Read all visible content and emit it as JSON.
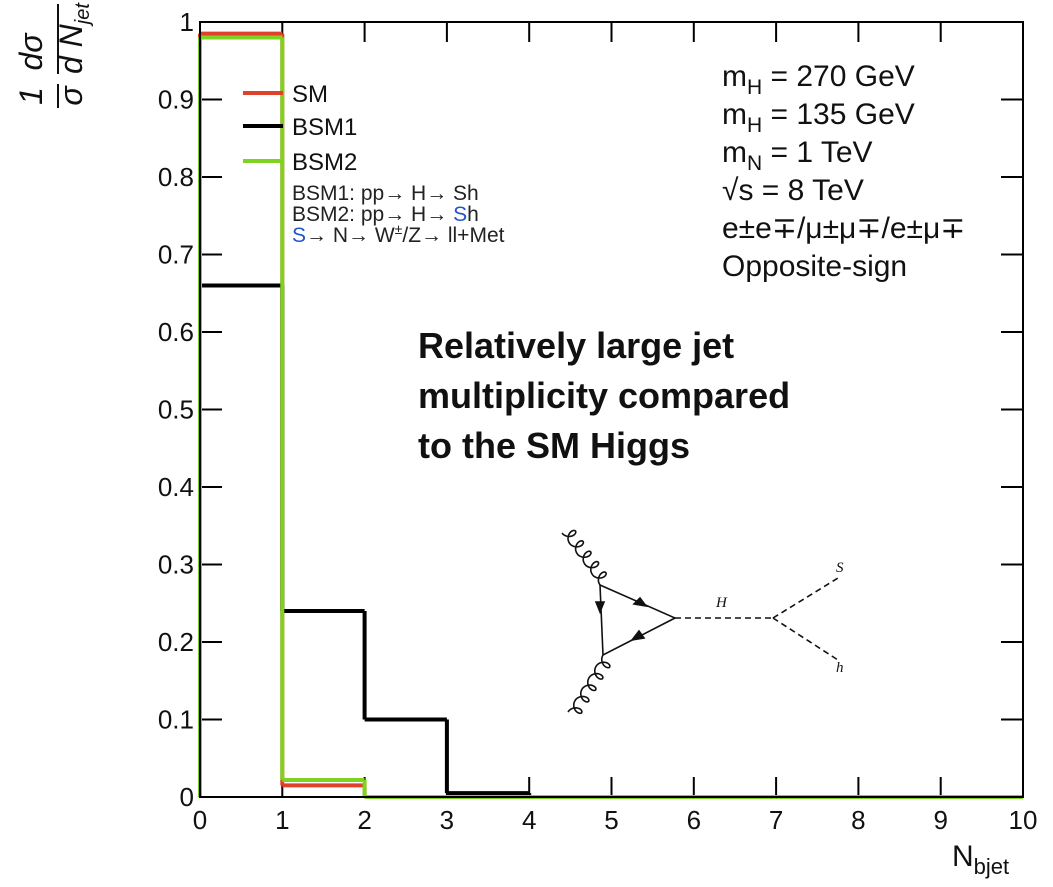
{
  "chart_data": {
    "type": "histogram",
    "ylabel": {
      "frac1_num": "1",
      "frac1_den": "σ",
      "frac2_num": "dσ",
      "frac2_den": "d N",
      "subscript": "jet"
    },
    "xlabel": {
      "text": "N",
      "subscript": "bjet"
    },
    "bins": [
      0,
      1,
      2,
      3,
      4,
      5,
      6,
      7,
      8,
      9,
      10
    ],
    "series": [
      {
        "name": "SM",
        "color": "#e0412b",
        "values": [
          0.985,
          0.015,
          0,
          0,
          0,
          0,
          0,
          0,
          0,
          0
        ]
      },
      {
        "name": "BSM1",
        "color": "#000000",
        "values": [
          0.66,
          0.24,
          0.1,
          0.005,
          0,
          0,
          0,
          0,
          0,
          0
        ]
      },
      {
        "name": "BSM2",
        "color": "#7ed321",
        "values": [
          0.98,
          0.022,
          0,
          0,
          0,
          0,
          0,
          0,
          0,
          0
        ]
      }
    ],
    "xlim": [
      0,
      10
    ],
    "ylim": [
      0,
      1
    ],
    "xticks": [
      0,
      1,
      2,
      3,
      4,
      5,
      6,
      7,
      8,
      9,
      10
    ],
    "yticks": [
      0,
      0.1,
      0.2,
      0.3,
      0.4,
      0.5,
      0.6,
      0.7,
      0.8,
      0.9,
      1
    ],
    "legend_notes": [
      [
        {
          "text": "BSM1: pp→ H→ Sh",
          "color": "#222222"
        }
      ],
      [
        {
          "text": "BSM2: pp→ H→ ",
          "color": "#222222"
        },
        {
          "text": "S",
          "color": "#2255cc"
        },
        {
          "text": "h",
          "color": "#222222"
        }
      ],
      [
        {
          "text": "S",
          "color": "#2255cc"
        },
        {
          "text": "→ N→ W",
          "color": "#222222"
        },
        {
          "text": "±",
          "color": "#222222",
          "sup": true
        },
        {
          "text": "/Z→ ll+Met",
          "color": "#222222"
        }
      ]
    ],
    "info_lines": [
      [
        {
          "text": "m"
        },
        {
          "text": "H",
          "sub": true
        },
        {
          "text": " = 270 GeV"
        }
      ],
      [
        {
          "text": "m"
        },
        {
          "text": "H",
          "sub": true
        },
        {
          "text": " = 135 GeV"
        }
      ],
      [
        {
          "text": "m"
        },
        {
          "text": "N",
          "sub": true
        },
        {
          "text": " = 1 TeV"
        }
      ],
      [
        {
          "text": "√s = 8 TeV"
        }
      ],
      [
        {
          "text": "e±e∓/μ±μ∓/e±μ∓"
        }
      ],
      [
        {
          "text": "Opposite-sign"
        }
      ]
    ],
    "annotation": [
      "Relatively large jet",
      "multiplicity compared",
      "to the SM Higgs"
    ],
    "diagram_labels": {
      "propagator": "H",
      "out1": "S",
      "out2": "h"
    }
  }
}
